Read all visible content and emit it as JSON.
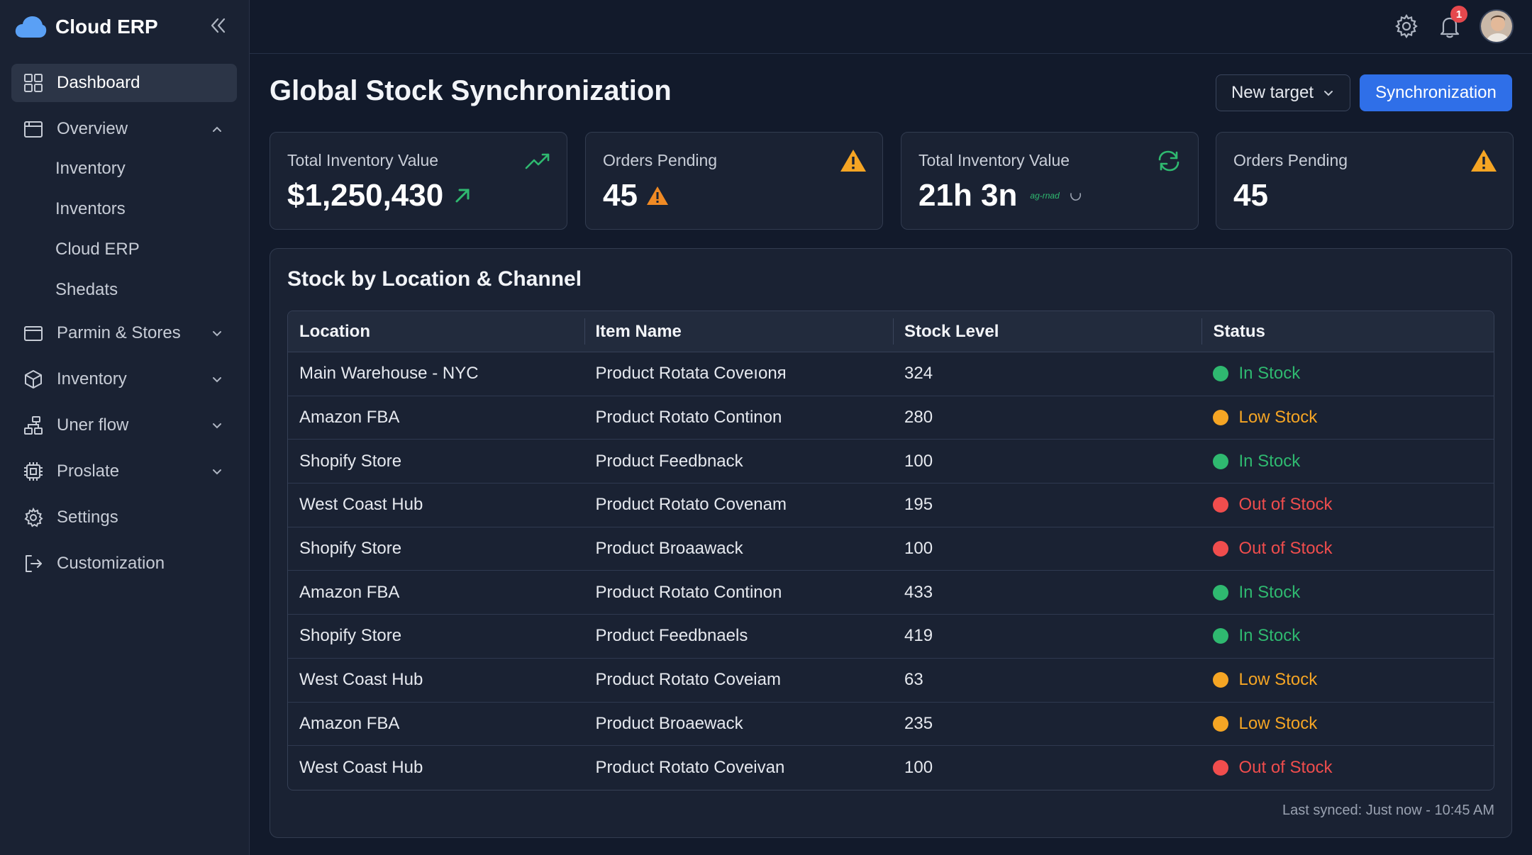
{
  "app": {
    "name": "Cloud ERP"
  },
  "sidebar": {
    "items": [
      {
        "label": "Dashboard",
        "icon": "dashboard-icon",
        "active": true
      },
      {
        "label": "Overview",
        "icon": "folder-icon",
        "expanded": true,
        "children": [
          "Inventory",
          "Inventors",
          "Cloud ERP",
          "Shedats"
        ]
      },
      {
        "label": "Parmin & Stores",
        "icon": "store-icon"
      },
      {
        "label": "Inventory",
        "icon": "box-icon"
      },
      {
        "label": "Uner flow",
        "icon": "flow-icon"
      },
      {
        "label": "Proslate",
        "icon": "chip-icon"
      },
      {
        "label": "Settings",
        "icon": "gear-icon"
      },
      {
        "label": "Customization",
        "icon": "logout-icon"
      }
    ]
  },
  "topbar": {
    "notification_count": "1"
  },
  "header": {
    "title": "Global Stock Synchronization",
    "new_target_label": "New target",
    "sync_label": "Synchronization"
  },
  "stats": [
    {
      "label": "Total Inventory Value",
      "value": "$1,250,430",
      "icon": "trend-up-icon"
    },
    {
      "label": "Orders Pending",
      "value": "45",
      "icon": "warning-icon"
    },
    {
      "label": "Total Inventory Value",
      "value": "21h 3n",
      "note": "ag-rnad",
      "icon": "refresh-icon"
    },
    {
      "label": "Orders Pending",
      "value": "45",
      "icon": "warning-icon"
    }
  ],
  "table": {
    "title": "Stock by Location & Channel",
    "columns": [
      "Location",
      "Item Name",
      "Stock Level",
      "Status"
    ],
    "rows": [
      [
        "Main Warehouse - NYC",
        "Product Rotata Coveıonя",
        "324",
        "In Stock"
      ],
      [
        "Amazon FBA",
        "Product Rotato Continon",
        "280",
        "Low Stock"
      ],
      [
        "Shopify Store",
        "Product Feedbnack",
        "100",
        "In Stock"
      ],
      [
        "West Coast Hub",
        "Product Rotato Covenam",
        "195",
        "Out of Stock"
      ],
      [
        "Shopify Store",
        "Product Broaawack",
        "100",
        "Out of Stock"
      ],
      [
        "Amazon FBA",
        "Product Rotato Continon",
        "433",
        "In Stock"
      ],
      [
        "Shopify Store",
        "Product Feedbnaels",
        "419",
        "In Stock"
      ],
      [
        "West Coast Hub",
        "Product Rotato Coveiam",
        "63",
        "Low Stock"
      ],
      [
        "Amazon FBA",
        "Product Broaewack",
        "235",
        "Low Stock"
      ],
      [
        "West Coast Hub",
        "Product Rotato Coveivan",
        "100",
        "Out of Stock"
      ]
    ],
    "footer": "Last synced: Just now - 10:45 AM"
  },
  "colors": {
    "in_stock": "#2fb970",
    "low_stock": "#f5a524",
    "out_of_stock": "#f04d4d",
    "accent": "#2f6fe8"
  }
}
